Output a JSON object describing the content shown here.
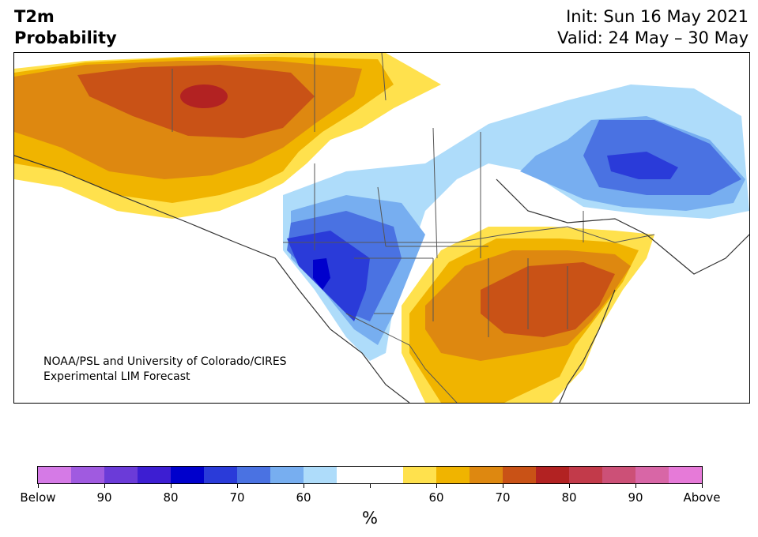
{
  "header": {
    "title_line1": "T2m",
    "title_line2": "Probability",
    "init": "Init: Sun 16 May 2021",
    "valid": "Valid: 24 May – 30 May"
  },
  "map": {
    "region": "North America",
    "credit_line1": "NOAA/PSL and University of Colorado/CIRES",
    "credit_line2": "Experimental LIM Forecast"
  },
  "colorbar": {
    "colors": [
      "#d57ae6",
      "#a05ae0",
      "#6b3bd8",
      "#3d1ed2",
      "#0000cc",
      "#2a3bd9",
      "#4a72e2",
      "#77aef0",
      "#aedcfa",
      "#ffffff",
      "#ffffff",
      "#ffe14d",
      "#f0b400",
      "#de8810",
      "#c95216",
      "#b22222",
      "#c23a4a",
      "#cc5077",
      "#d866a6",
      "#e67ad8"
    ],
    "tick_labels": [
      "Below",
      "90",
      "80",
      "70",
      "60",
      "",
      "60",
      "70",
      "80",
      "90",
      "Above"
    ],
    "unit": "%"
  }
}
